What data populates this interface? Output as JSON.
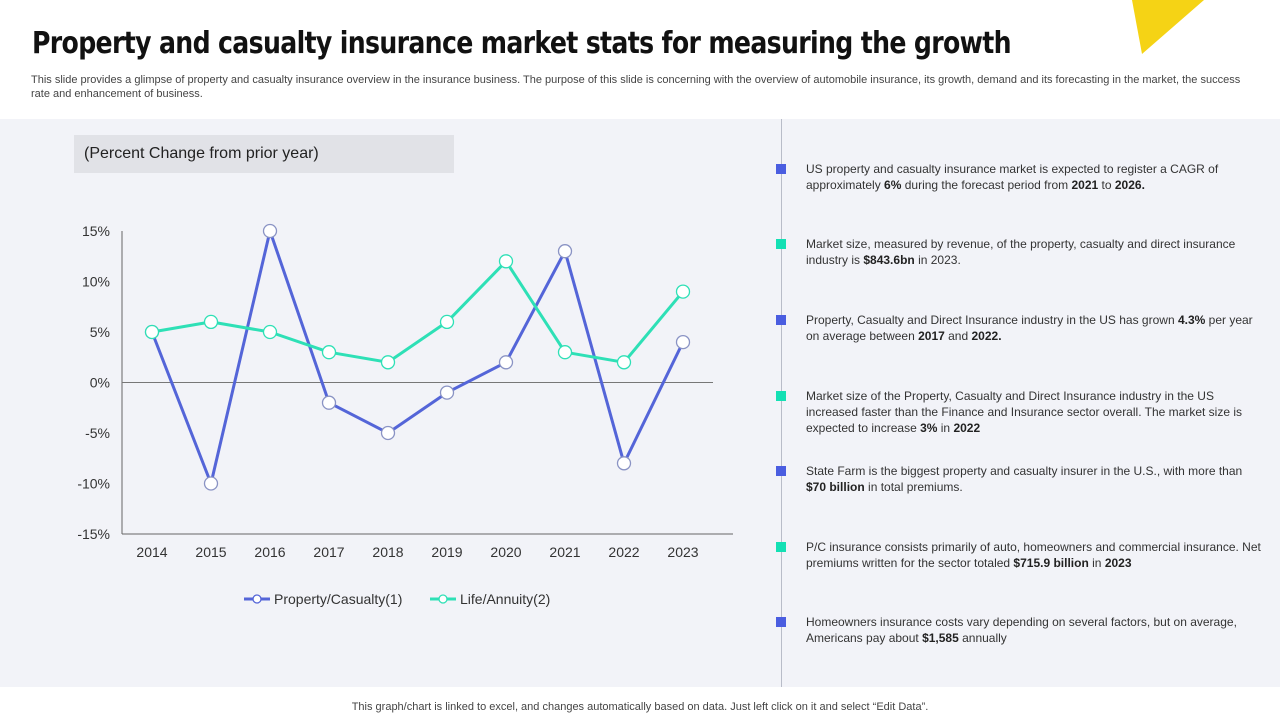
{
  "header": {
    "title": "Property and casualty insurance market stats for measuring the growth",
    "subtitle": "This slide provides a glimpse of property and casualty insurance overview in the insurance business. The purpose of this slide is concerning with the overview of automobile insurance, its growth, demand and its forecasting in the market, the success rate and enhancement of business."
  },
  "colors": {
    "accent_yellow": "#f5d315",
    "series_blue": "#5465d8",
    "series_green": "#2ee0b6",
    "marker_blue": "#4a5de0",
    "marker_green": "#14e0b4"
  },
  "chart_heading": "(Percent Change from prior year)",
  "chart_data": {
    "type": "line",
    "x": [
      "2014",
      "2015",
      "2016",
      "2017",
      "2018",
      "2019",
      "2020",
      "2021",
      "2022",
      "2023"
    ],
    "series": [
      {
        "name": "Property/Casualty(1)",
        "values": [
          5,
          -10,
          15,
          -2,
          -5,
          -1,
          2,
          13,
          -8,
          4
        ]
      },
      {
        "name": "Life/Annuity(2)",
        "values": [
          5,
          6,
          5,
          3,
          2,
          6,
          12,
          3,
          2,
          9
        ]
      }
    ],
    "ylim": [
      -15,
      15
    ],
    "yticks": [
      "15%",
      "10%",
      "5%",
      "0%",
      "-5%",
      "-10%",
      "-15%"
    ],
    "legend_position": "bottom",
    "grid": false
  },
  "bullets": [
    {
      "color": "blue",
      "parts": [
        {
          "t": "US property and casualty insurance  market is expected to register a CAGR of approximately "
        },
        {
          "t": "6%",
          "b": true
        },
        {
          "t": " during the forecast period from "
        },
        {
          "t": "2021",
          "b": true
        },
        {
          "t": " to "
        },
        {
          "t": "2026.",
          "b": true
        }
      ]
    },
    {
      "color": "green",
      "parts": [
        {
          "t": "Market size, measured by revenue,  of the property, casualty and direct insurance industry is "
        },
        {
          "t": "$843.6bn",
          "b": true
        },
        {
          "t": " in 2023."
        }
      ]
    },
    {
      "color": "blue",
      "parts": [
        {
          "t": "Property, Casualty and Direct Insurance industry in the US has grown "
        },
        {
          "t": "4.3%",
          "b": true
        },
        {
          "t": " per year on average  between "
        },
        {
          "t": "2017",
          "b": true
        },
        {
          "t": " and "
        },
        {
          "t": "2022.",
          "b": true
        }
      ]
    },
    {
      "color": "green",
      "parts": [
        {
          "t": "Market size of the Property, Casualty and Direct Insurance industry in the US increased faster than the Finance and Insurance sector overall. The market size is expected to increase "
        },
        {
          "t": "3%",
          "b": true
        },
        {
          "t": " in "
        },
        {
          "t": "2022",
          "b": true
        }
      ]
    },
    {
      "color": "blue",
      "parts": [
        {
          "t": "State Farm is the biggest property and casualty insurer in the U.S., with more than "
        },
        {
          "t": "$70 billion",
          "b": true
        },
        {
          "t": " in total premiums."
        }
      ]
    },
    {
      "color": "green",
      "parts": [
        {
          "t": "P/C insurance consists primarily of auto, homeowners  and commercial insurance. Net premiums written for the sector totaled "
        },
        {
          "t": "$715.9 billion",
          "b": true
        },
        {
          "t": " in "
        },
        {
          "t": "2023",
          "b": true
        }
      ]
    },
    {
      "color": "blue",
      "parts": [
        {
          "t": "Homeowners  insurance costs vary depending on several factors, but on average,  Americans pay about "
        },
        {
          "t": "$1,585",
          "b": true
        },
        {
          "t": " annually"
        }
      ]
    }
  ],
  "footer": "This graph/chart is linked to excel,  and changes automatically based on data. Just left click on it and select “Edit Data”."
}
